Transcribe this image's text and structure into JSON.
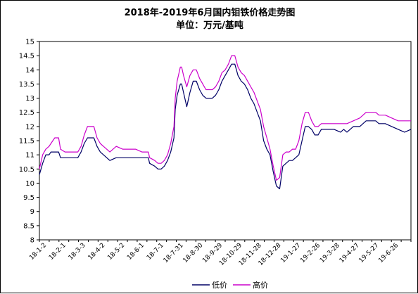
{
  "chart_data": {
    "type": "line",
    "title": "2018年-2019年6月国内钼铁价格走势图",
    "subtitle": "单位：万元/基吨",
    "xlabel": "",
    "ylabel": "",
    "ylim": [
      8,
      15
    ],
    "y_ticks": [
      "8",
      "8.5",
      "9",
      "9.5",
      "10",
      "10.5",
      "11",
      "11.5",
      "12",
      "12.5",
      "13",
      "13.5",
      "14",
      "14.5",
      "15"
    ],
    "grid": false,
    "legend_position": "bottom",
    "x_tick_labels": [
      "18-1-2",
      "18-2-1",
      "18-3-3",
      "18-4-2",
      "18-5-2",
      "18-6-1",
      "18-7-1",
      "18-7-31",
      "18-8-30",
      "18-9-29",
      "18-10-29",
      "18-11-28",
      "18-12-28",
      "19-1-27",
      "19-2-26",
      "19-3-28",
      "19-4-27",
      "19-5-27",
      "19-6-26"
    ],
    "x": [
      0,
      5,
      10,
      15,
      18,
      24,
      30,
      33,
      40,
      45,
      50,
      60,
      65,
      70,
      75,
      80,
      85,
      90,
      95,
      100,
      105,
      110,
      120,
      130,
      140,
      150,
      160,
      170,
      172,
      180,
      185,
      190,
      195,
      200,
      205,
      210,
      212,
      215,
      220,
      222,
      225,
      230,
      235,
      240,
      245,
      250,
      255,
      260,
      265,
      270,
      275,
      280,
      285,
      290,
      295,
      300,
      305,
      310,
      315,
      320,
      325,
      330,
      335,
      340,
      345,
      350,
      355,
      360,
      365,
      370,
      375,
      380,
      385,
      390,
      395,
      400,
      405,
      410,
      415,
      420,
      425,
      430,
      435,
      440,
      445,
      450,
      460,
      470,
      475,
      480,
      490,
      500,
      510,
      520,
      525,
      530,
      540,
      550,
      560,
      570,
      580
    ],
    "series": [
      {
        "name": "低价",
        "color": "#000066",
        "values": [
          10.3,
          10.7,
          11.0,
          11.0,
          11.1,
          11.1,
          11.1,
          10.9,
          10.9,
          10.9,
          10.9,
          10.9,
          11.1,
          11.4,
          11.6,
          11.6,
          11.6,
          11.3,
          11.1,
          11.0,
          10.9,
          10.8,
          10.9,
          10.9,
          10.9,
          10.9,
          10.9,
          10.9,
          10.7,
          10.6,
          10.5,
          10.5,
          10.6,
          10.8,
          11.1,
          11.6,
          12.6,
          13.1,
          13.5,
          13.5,
          13.2,
          12.7,
          13.2,
          13.6,
          13.6,
          13.3,
          13.1,
          13.0,
          13.0,
          13.0,
          13.1,
          13.3,
          13.6,
          13.8,
          14.0,
          14.2,
          14.2,
          13.8,
          13.6,
          13.5,
          13.3,
          13.0,
          12.8,
          12.5,
          12.2,
          11.5,
          11.2,
          11.0,
          10.4,
          9.9,
          9.8,
          10.6,
          10.7,
          10.8,
          10.8,
          10.9,
          11.0,
          11.5,
          12.0,
          12.0,
          11.9,
          11.7,
          11.7,
          11.9,
          11.9,
          11.9,
          11.9,
          11.8,
          11.9,
          11.8,
          12.0,
          12.0,
          12.2,
          12.2,
          12.2,
          12.1,
          12.1,
          12.0,
          11.9,
          11.8,
          11.9
        ]
      },
      {
        "name": "高价",
        "color": "#cc00cc",
        "values": [
          10.5,
          11.0,
          11.2,
          11.3,
          11.4,
          11.6,
          11.6,
          11.2,
          11.1,
          11.1,
          11.1,
          11.1,
          11.3,
          11.7,
          12.0,
          12.0,
          12.0,
          11.6,
          11.4,
          11.3,
          11.2,
          11.1,
          11.3,
          11.2,
          11.2,
          11.2,
          11.1,
          11.1,
          10.9,
          10.8,
          10.7,
          10.7,
          10.8,
          11.0,
          11.4,
          12.0,
          13.0,
          13.6,
          14.1,
          14.1,
          13.8,
          13.4,
          13.8,
          14.0,
          14.0,
          13.7,
          13.5,
          13.3,
          13.3,
          13.3,
          13.4,
          13.6,
          13.9,
          14.0,
          14.2,
          14.5,
          14.5,
          14.1,
          13.9,
          13.8,
          13.6,
          13.4,
          13.2,
          12.9,
          12.6,
          12.0,
          11.6,
          11.2,
          10.6,
          10.1,
          10.2,
          11.0,
          11.1,
          11.1,
          11.2,
          11.2,
          11.5,
          12.1,
          12.5,
          12.5,
          12.2,
          12.0,
          12.0,
          12.1,
          12.1,
          12.1,
          12.1,
          12.1,
          12.1,
          12.1,
          12.2,
          12.3,
          12.5,
          12.5,
          12.5,
          12.4,
          12.4,
          12.3,
          12.2,
          12.2,
          12.2
        ]
      }
    ]
  }
}
